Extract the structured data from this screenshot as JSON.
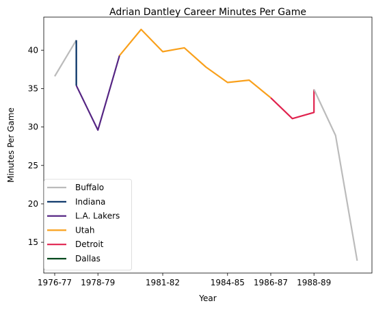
{
  "chart_data": {
    "type": "line",
    "title": "Adrian Dantley Career Minutes Per Game",
    "xlabel": "Year",
    "ylabel": "Minutes Per Game",
    "x_ticks": [
      "1976-77",
      "1978-79",
      "1981-82",
      "1984-85",
      "1986-87",
      "1988-89"
    ],
    "y_ticks": [
      15,
      20,
      25,
      30,
      35,
      40
    ],
    "ylim": [
      11.0,
      44.3
    ],
    "grid": false,
    "legend_position": "lower-left",
    "series": [
      {
        "name": "Buffalo",
        "color": "#bbbbbb",
        "points": [
          [
            "1976-77",
            36.6
          ],
          [
            "1977-78",
            41.3
          ]
        ]
      },
      {
        "name": "Indiana",
        "color": "#002d62",
        "points": [
          [
            "1977-78",
            41.3
          ],
          [
            "1977-78",
            35.4
          ]
        ]
      },
      {
        "name": "L.A. Lakers",
        "color": "#552583",
        "points": [
          [
            "1977-78",
            35.4
          ],
          [
            "1978-79",
            29.6
          ],
          [
            "1979-80",
            39.3
          ]
        ]
      },
      {
        "name": "Utah",
        "color": "#f9a01b",
        "points": [
          [
            "1979-80",
            39.3
          ],
          [
            "1980-81",
            42.7
          ],
          [
            "1981-82",
            39.8
          ],
          [
            "1982-83",
            40.3
          ],
          [
            "1983-84",
            37.8
          ],
          [
            "1984-85",
            35.8
          ],
          [
            "1985-86",
            36.1
          ],
          [
            "1986-87",
            33.8
          ]
        ]
      },
      {
        "name": "Detroit",
        "color": "#e0224e",
        "points": [
          [
            "1986-87",
            33.8
          ],
          [
            "1987-88",
            31.1
          ],
          [
            "1988-89",
            31.9
          ],
          [
            "1988-89",
            34.9
          ]
        ]
      },
      {
        "name": "Dallas",
        "color": "#00471b",
        "points": []
      },
      {
        "name": "",
        "color": "#bbbbbb",
        "points": [
          [
            "1988-89",
            34.9
          ],
          [
            "1989-90",
            28.9
          ],
          [
            "1990-91",
            12.6
          ]
        ]
      }
    ]
  }
}
